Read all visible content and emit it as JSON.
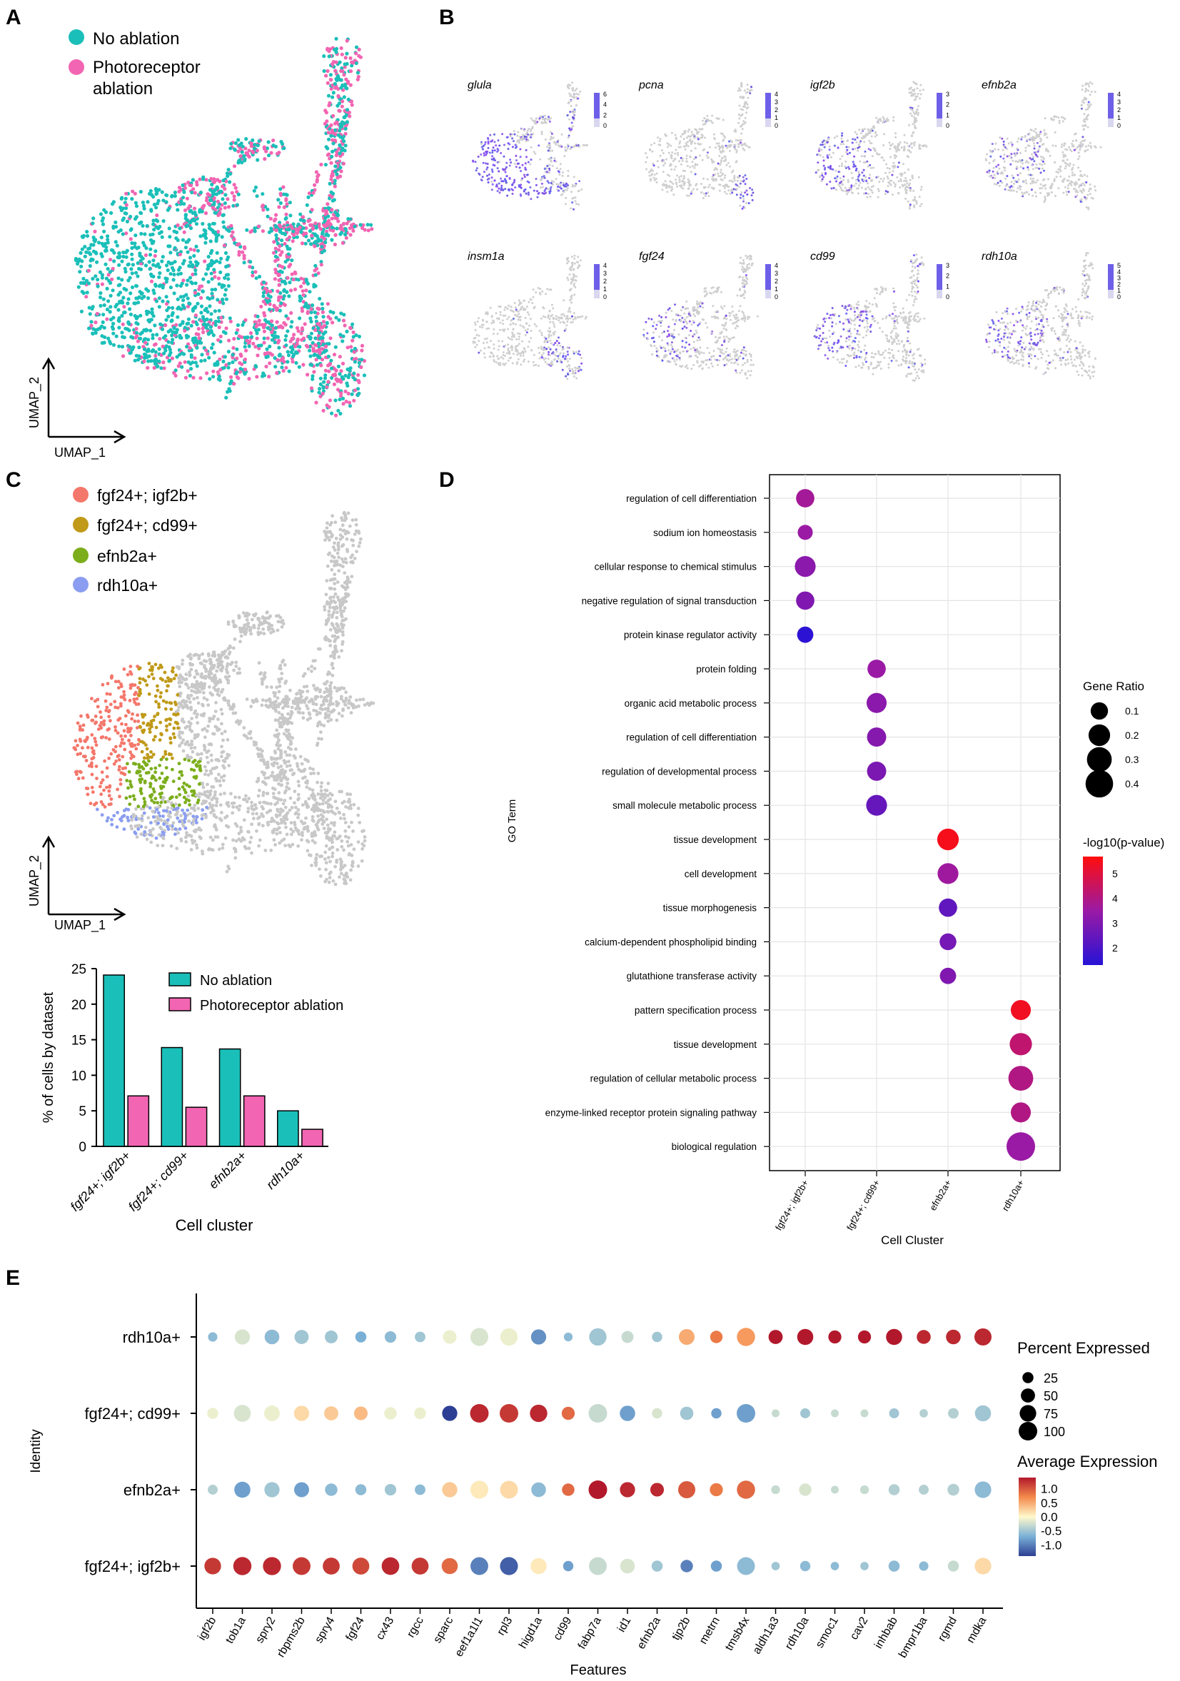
{
  "panels": {
    "A": {
      "label": "A",
      "legend": [
        {
          "name": "No ablation",
          "color": "#1bbfb9"
        },
        {
          "name": "Photoreceptor",
          "color": "#f265b2"
        },
        {
          "name": "ablation",
          "color": "#f265b2"
        }
      ],
      "xlabel": "UMAP_1",
      "ylabel": "UMAP_2"
    },
    "B": {
      "label": "B",
      "genes": [
        {
          "name": "glula",
          "ticks": [
            "6",
            "4",
            "2",
            "0"
          ],
          "level": 0.85
        },
        {
          "name": "pcna",
          "ticks": [
            "4",
            "3",
            "2",
            "1",
            "0"
          ],
          "level": 0.35
        },
        {
          "name": "igf2b",
          "ticks": [
            "3",
            "2",
            "1",
            "0"
          ],
          "level": 0.55
        },
        {
          "name": "efnb2a",
          "ticks": [
            "4",
            "3",
            "2",
            "1",
            "0"
          ],
          "level": 0.35
        },
        {
          "name": "insm1a",
          "ticks": [
            "4",
            "3",
            "2",
            "1",
            "0"
          ],
          "level": 0.25
        },
        {
          "name": "fgf24",
          "ticks": [
            "4",
            "3",
            "2",
            "1",
            "0"
          ],
          "level": 0.55
        },
        {
          "name": "cd99",
          "ticks": [
            "3",
            "2",
            "1",
            "0"
          ],
          "level": 0.55
        },
        {
          "name": "rdh10a",
          "ticks": [
            "5",
            "4",
            "3",
            "2",
            "1",
            "0"
          ],
          "level": 0.45
        }
      ]
    },
    "C": {
      "label": "C",
      "legend": [
        {
          "name": "fgf24+; igf2b+",
          "color": "#f4776b"
        },
        {
          "name": "fgf24+; cd99+",
          "color": "#c09a18"
        },
        {
          "name": "efnb2a+",
          "color": "#7cae1c"
        },
        {
          "name": "rdh10a+",
          "color": "#8a9df0"
        }
      ],
      "xlabel": "UMAP_1",
      "ylabel": "UMAP_2"
    },
    "D": {
      "label": "D"
    },
    "E": {
      "label": "E"
    }
  },
  "chart_data": [
    {
      "type": "bar",
      "panel": "C-bar",
      "categories": [
        "fgf24+; igf2b+",
        "fgf24+; cd99+",
        "efnb2a+",
        "rdh10a+"
      ],
      "series": [
        {
          "name": "No ablation",
          "color": "#1bbfb9",
          "values": [
            24.1,
            13.9,
            13.7,
            5.0
          ]
        },
        {
          "name": "Photoreceptor ablation",
          "color": "#f265b2",
          "values": [
            7.1,
            5.5,
            7.1,
            2.4
          ]
        }
      ],
      "xlabel": "Cell cluster",
      "ylabel": "% of cells by dataset",
      "ylim": [
        0,
        25
      ],
      "yticks": [
        "0",
        "5",
        "10",
        "15",
        "20",
        "25"
      ]
    },
    {
      "type": "scatter",
      "panel": "D",
      "ylabel": "GO Term",
      "xlabel": "Cell Cluster",
      "clusters": [
        "fgf24+; igf2b+",
        "fgf24+; cd99+",
        "efnb2a+",
        "rdh10a+"
      ],
      "terms": [
        "regulation of cell differentiation",
        "sodium ion homeostasis",
        "cellular response to chemical stimulus",
        "negative regulation of signal transduction",
        "protein kinase regulator activity",
        "protein folding",
        "organic acid metabolic process",
        "regulation of cell differentiation",
        "regulation of developmental process",
        "small molecule metabolic process",
        "tissue development",
        "cell development",
        "tissue morphogenesis",
        "calcium-dependent phospholipid binding",
        "glutathione transferase activity",
        "pattern specification process",
        "tissue development",
        "regulation of cellular metabolic process",
        "enzyme-linked receptor protein signaling pathway",
        "biological regulation"
      ],
      "points": [
        {
          "term": 0,
          "cluster": 0,
          "ratio": 0.12,
          "logp": 3.7
        },
        {
          "term": 1,
          "cluster": 0,
          "ratio": 0.06,
          "logp": 3.5
        },
        {
          "term": 2,
          "cluster": 0,
          "ratio": 0.18,
          "logp": 3.2
        },
        {
          "term": 3,
          "cluster": 0,
          "ratio": 0.12,
          "logp": 3.0
        },
        {
          "term": 4,
          "cluster": 0,
          "ratio": 0.08,
          "logp": 1.4
        },
        {
          "term": 5,
          "cluster": 1,
          "ratio": 0.12,
          "logp": 3.5
        },
        {
          "term": 6,
          "cluster": 1,
          "ratio": 0.16,
          "logp": 3.2
        },
        {
          "term": 7,
          "cluster": 1,
          "ratio": 0.14,
          "logp": 3.1
        },
        {
          "term": 8,
          "cluster": 1,
          "ratio": 0.14,
          "logp": 2.9
        },
        {
          "term": 9,
          "cluster": 1,
          "ratio": 0.18,
          "logp": 2.5
        },
        {
          "term": 10,
          "cluster": 2,
          "ratio": 0.2,
          "logp": 5.5
        },
        {
          "term": 11,
          "cluster": 2,
          "ratio": 0.18,
          "logp": 3.6
        },
        {
          "term": 12,
          "cluster": 2,
          "ratio": 0.12,
          "logp": 2.4
        },
        {
          "term": 13,
          "cluster": 2,
          "ratio": 0.09,
          "logp": 2.8
        },
        {
          "term": 14,
          "cluster": 2,
          "ratio": 0.08,
          "logp": 3.0
        },
        {
          "term": 15,
          "cluster": 3,
          "ratio": 0.16,
          "logp": 5.4
        },
        {
          "term": 16,
          "cluster": 3,
          "ratio": 0.22,
          "logp": 4.3
        },
        {
          "term": 17,
          "cluster": 3,
          "ratio": 0.3,
          "logp": 4.0
        },
        {
          "term": 18,
          "cluster": 3,
          "ratio": 0.16,
          "logp": 4.0
        },
        {
          "term": 19,
          "cluster": 3,
          "ratio": 0.44,
          "logp": 3.5
        }
      ],
      "size_legend": {
        "title": "Gene  Ratio",
        "values": [
          0.1,
          0.2,
          0.3,
          0.4
        ],
        "labels": [
          "0.1",
          "0.2",
          "0.3",
          "0.4"
        ]
      },
      "color_legend": {
        "title": "-log10(p-value)",
        "range": [
          1.3,
          5.7
        ],
        "ticks": [
          "5",
          "4",
          "3",
          "2"
        ],
        "tick_values": [
          5,
          4,
          3,
          2
        ],
        "low": "#2713d6",
        "high": "#ff0d0d"
      }
    },
    {
      "type": "scatter",
      "panel": "E",
      "ylabel": "Identity",
      "xlabel": "Features",
      "features": [
        "igf2b",
        "tob1a",
        "spry2",
        "rbpms2b",
        "spry4",
        "fgf24",
        "cx43",
        "rgcc",
        "sparc",
        "eef1a1l1",
        "rpl3",
        "higd1a",
        "cd99",
        "fabp7a",
        "id1",
        "efnb2a",
        "tjp2b",
        "metrn",
        "tmsb4x",
        "aldh1a3",
        "rdh10a",
        "smoc1",
        "cav2",
        "inhbab",
        "bmpr1ba",
        "rgmd",
        "mdka"
      ],
      "identities": [
        "fgf24+; igf2b+",
        "efnb2a+",
        "fgf24+; cd99+",
        "rdh10a+"
      ],
      "pct": [
        [
          76,
          95,
          94,
          90,
          80,
          80,
          88,
          80,
          70,
          90,
          92,
          70,
          20,
          90,
          55,
          25,
          35,
          25,
          90,
          10,
          20,
          10,
          10,
          25,
          15,
          25,
          75
        ],
        [
          18,
          70,
          60,
          58,
          35,
          25,
          28,
          22,
          60,
          92,
          90,
          55,
          35,
          100,
          60,
          45,
          82,
          40,
          95,
          12,
          35,
          8,
          12,
          25,
          18,
          30,
          75
        ],
        [
          25,
          80,
          65,
          60,
          50,
          45,
          35,
          30,
          60,
          100,
          100,
          85,
          40,
          100,
          62,
          20,
          42,
          20,
          100,
          8,
          18,
          8,
          8,
          18,
          10,
          22,
          70
        ],
        [
          15,
          60,
          55,
          50,
          38,
          25,
          28,
          22,
          45,
          92,
          85,
          60,
          12,
          85,
          32,
          20,
          66,
          35,
          95,
          50,
          70,
          40,
          40,
          70,
          48,
          55,
          82
        ]
      ],
      "avg": [
        [
          1.2,
          1.3,
          1.3,
          1.2,
          1.2,
          1.1,
          1.3,
          1.2,
          0.9,
          -1.0,
          -1.2,
          0.1,
          -0.8,
          -0.3,
          -0.2,
          -0.5,
          -1.0,
          -0.8,
          -0.6,
          -0.5,
          -0.6,
          -0.6,
          -0.5,
          -0.6,
          -0.6,
          -0.3,
          0.2
        ],
        [
          -0.4,
          -0.8,
          -0.5,
          -0.8,
          -0.6,
          -0.6,
          -0.5,
          -0.6,
          0.3,
          0.1,
          0.2,
          -0.6,
          0.9,
          1.4,
          1.3,
          1.3,
          1.0,
          0.8,
          0.9,
          -0.3,
          -0.2,
          -0.3,
          -0.3,
          -0.4,
          -0.4,
          -0.4,
          -0.6
        ],
        [
          -0.1,
          -0.2,
          -0.1,
          0.2,
          0.3,
          0.4,
          -0.1,
          -0.1,
          -1.4,
          1.3,
          1.2,
          1.3,
          0.9,
          -0.3,
          -0.8,
          -0.2,
          -0.5,
          -0.8,
          -0.8,
          -0.3,
          -0.5,
          -0.3,
          -0.3,
          -0.5,
          -0.4,
          -0.4,
          -0.5
        ],
        [
          -0.6,
          -0.2,
          -0.6,
          -0.5,
          -0.5,
          -0.7,
          -0.6,
          -0.5,
          -0.1,
          -0.2,
          -0.1,
          -0.9,
          -0.6,
          -0.5,
          -0.3,
          -0.5,
          0.5,
          0.8,
          0.6,
          1.4,
          1.4,
          1.4,
          1.4,
          1.4,
          1.3,
          1.3,
          1.3
        ]
      ],
      "size_legend": {
        "title": "Percent Expressed",
        "values": [
          25,
          50,
          75,
          100
        ],
        "labels": [
          "25",
          "50",
          "75",
          "100"
        ]
      },
      "color_legend": {
        "title": "Average Expression",
        "range": [
          -1.4,
          1.4
        ],
        "ticks": [
          "1.0",
          "0.5",
          "0.0",
          "-0.5",
          "-1.0"
        ],
        "tick_values": [
          1.0,
          0.5,
          0.0,
          -0.5,
          -1.0
        ]
      }
    }
  ]
}
